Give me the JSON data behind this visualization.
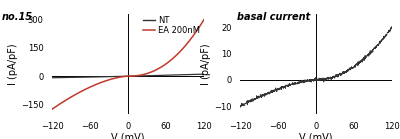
{
  "fig_width": 4.0,
  "fig_height": 1.39,
  "dpi": 100,
  "left_label": "no.15",
  "right_label": "basal current",
  "left_legend_NT": "NT",
  "left_legend_EA": "EA 200nM",
  "NT_color": "#333333",
  "EA_color": "#c0392b",
  "basal_color": "#333333",
  "left_xlim": [
    -120,
    120
  ],
  "left_ylim": [
    -200,
    330
  ],
  "left_yticks": [
    -150,
    0,
    150,
    300
  ],
  "left_xticks": [
    -120,
    -60,
    0,
    60,
    120
  ],
  "right_xlim": [
    -120,
    120
  ],
  "right_ylim": [
    -13,
    25
  ],
  "right_yticks": [
    -10,
    0,
    10,
    20
  ],
  "right_xticks": [
    -120,
    -60,
    0,
    60,
    120
  ],
  "xlabel": "V (mV)",
  "ylabel": "I (pA/pF)"
}
